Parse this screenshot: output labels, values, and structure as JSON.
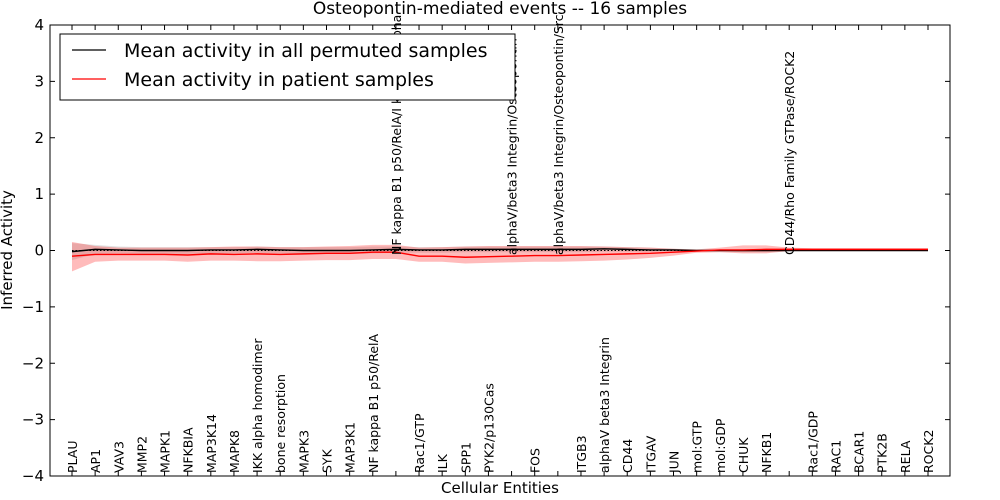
{
  "chart_data": {
    "type": "line",
    "title": "Osteopontin-mediated events -- 16 samples",
    "xlabel": "Cellular Entities",
    "ylabel": "Inferred Activity",
    "ylim": [
      -4,
      4
    ],
    "yticks": [
      -4,
      -3,
      -2,
      -1,
      0,
      1,
      2,
      3,
      4
    ],
    "ytick_labels": [
      "−4",
      "−3",
      "−2",
      "−1",
      "0",
      "1",
      "2",
      "3",
      "4"
    ],
    "categories": [
      "PLAU",
      "AP1",
      "VAV3",
      "MMP2",
      "MAPK1",
      "NFKBIA",
      "MAP3K14",
      "MAPK8",
      "IKK alpha homodimer",
      "bone resorption",
      "MAPK3",
      "SYK",
      "MAP3K1",
      "NF kappa B1 p50/RelA",
      "NF kappa B1 p50/RelA/I kappa B alpha",
      "Rac1/GTP",
      "ILK",
      "SPP1",
      "PYK2/p130Cas",
      "alphaV/beta3 Integrin/Osteopontin",
      "FOS",
      "alphaV/beta3 Integrin/Osteopontin/Src",
      "ITGB3",
      "alphaV beta3 Integrin",
      "CD44",
      "ITGAV",
      "JUN",
      "mol:GTP",
      "mol:GDP",
      "CHUK",
      "NFKB1",
      "CD44/Rho Family GTPase/ROCK2",
      "Rac1/GDP",
      "RAC1",
      "BCAR1",
      "PTK2B",
      "RELA",
      "ROCK2"
    ],
    "label_position": [
      "bottom",
      "bottom",
      "bottom",
      "bottom",
      "bottom",
      "bottom",
      "bottom",
      "bottom",
      "bottom",
      "bottom",
      "bottom",
      "bottom",
      "bottom",
      "bottom",
      "top",
      "bottom",
      "bottom",
      "bottom",
      "bottom",
      "top",
      "bottom",
      "top",
      "bottom",
      "bottom",
      "bottom",
      "bottom",
      "bottom",
      "bottom",
      "bottom",
      "bottom",
      "bottom",
      "top",
      "bottom",
      "bottom",
      "bottom",
      "bottom",
      "bottom",
      "bottom"
    ],
    "legend_position": "top-left",
    "series": [
      {
        "name": "Mean activity in all permuted samples",
        "color": "#000000",
        "values": [
          -0.02,
          0.02,
          0.01,
          0.0,
          0.0,
          0.0,
          0.01,
          0.01,
          0.02,
          0.01,
          0.0,
          0.0,
          0.0,
          0.01,
          0.02,
          0.01,
          0.01,
          0.02,
          0.02,
          0.02,
          0.02,
          0.02,
          0.02,
          0.03,
          0.02,
          0.01,
          0.01,
          0.0,
          0.0,
          0.0,
          0.0,
          0.0,
          0.0,
          0.0,
          0.0,
          0.0,
          0.0,
          0.0
        ],
        "band_upper": [
          0.13,
          0.1,
          0.07,
          0.06,
          0.06,
          0.06,
          0.06,
          0.06,
          0.07,
          0.06,
          0.06,
          0.06,
          0.06,
          0.07,
          0.07,
          0.06,
          0.06,
          0.07,
          0.07,
          0.07,
          0.07,
          0.07,
          0.07,
          0.07,
          0.06,
          0.05,
          0.03,
          0.01,
          0.01,
          0.01,
          0.01,
          0.01,
          0.01,
          0.01,
          0.01,
          0.01,
          0.01,
          0.01
        ],
        "band_lower": [
          -0.17,
          -0.06,
          -0.05,
          -0.06,
          -0.06,
          -0.06,
          -0.05,
          -0.05,
          -0.04,
          -0.05,
          -0.06,
          -0.06,
          -0.06,
          -0.05,
          -0.04,
          -0.04,
          -0.04,
          -0.03,
          -0.03,
          -0.03,
          -0.03,
          -0.03,
          -0.03,
          -0.02,
          -0.02,
          -0.02,
          -0.01,
          -0.01,
          -0.01,
          -0.03,
          -0.03,
          -0.01,
          -0.01,
          -0.01,
          -0.01,
          -0.01,
          -0.01,
          -0.01
        ]
      },
      {
        "name": "Mean activity in patient samples",
        "color": "#ff0000",
        "values": [
          -0.1,
          -0.07,
          -0.07,
          -0.07,
          -0.07,
          -0.08,
          -0.06,
          -0.07,
          -0.06,
          -0.07,
          -0.06,
          -0.05,
          -0.05,
          -0.03,
          -0.03,
          -0.1,
          -0.1,
          -0.12,
          -0.11,
          -0.1,
          -0.09,
          -0.09,
          -0.08,
          -0.07,
          -0.06,
          -0.05,
          -0.03,
          -0.01,
          0.01,
          0.01,
          0.02,
          0.02,
          0.02,
          0.02,
          0.02,
          0.02,
          0.02,
          0.02
        ],
        "band_upper": [
          0.15,
          0.08,
          0.05,
          0.05,
          0.05,
          0.05,
          0.06,
          0.07,
          0.07,
          0.06,
          0.06,
          0.07,
          0.08,
          0.1,
          0.1,
          0.05,
          0.06,
          0.07,
          0.08,
          0.08,
          0.08,
          0.08,
          0.08,
          0.07,
          0.06,
          0.05,
          0.03,
          0.02,
          0.05,
          0.09,
          0.09,
          0.05,
          0.04,
          0.04,
          0.04,
          0.04,
          0.04,
          0.04
        ],
        "band_lower": [
          -0.37,
          -0.2,
          -0.18,
          -0.18,
          -0.18,
          -0.2,
          -0.18,
          -0.18,
          -0.19,
          -0.19,
          -0.18,
          -0.17,
          -0.17,
          -0.15,
          -0.15,
          -0.2,
          -0.2,
          -0.23,
          -0.22,
          -0.21,
          -0.2,
          -0.2,
          -0.19,
          -0.18,
          -0.16,
          -0.13,
          -0.09,
          -0.04,
          -0.03,
          -0.05,
          -0.05,
          -0.01,
          0.0,
          0.0,
          0.0,
          0.0,
          0.0,
          0.0
        ]
      }
    ]
  }
}
